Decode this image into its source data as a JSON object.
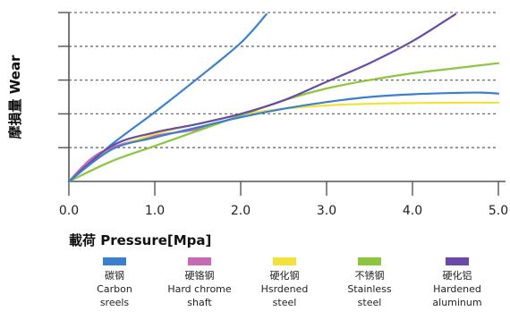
{
  "chart_data": {
    "type": "line",
    "xlabel": "載荷 Pressure[Mpa]",
    "ylabel": "摩損量 Wear",
    "xlim": [
      0,
      5
    ],
    "ylim": [
      0,
      5
    ],
    "x_ticks": [
      "0.0",
      "1.0",
      "2.0",
      "3.0",
      "4.0",
      "5.0"
    ],
    "grid": "horizontal-dashed",
    "legend_position": "bottom",
    "series": [
      {
        "name_zh": "碳钢",
        "name_en": [
          "Carbon",
          "sreels"
        ],
        "color": "#3a7fd0",
        "x": [
          0,
          0.5,
          1.0,
          1.5,
          2.0,
          2.3
        ],
        "y": [
          0,
          1.1,
          2.05,
          3.05,
          4.1,
          4.95
        ]
      },
      {
        "name_zh": "硬铬钢",
        "name_en": [
          "Hard chrome",
          "shaft"
        ],
        "color": "#c66ab3",
        "x": [
          0,
          0.25,
          0.5,
          1.0,
          1.5,
          2.0
        ],
        "y": [
          0,
          0.65,
          1.0,
          1.35,
          1.55,
          1.95
        ]
      },
      {
        "name_zh": "硬化钢",
        "name_en": [
          "Hsrdened",
          "steel"
        ],
        "color": "#f2e23a",
        "x": [
          0,
          0.25,
          0.5,
          1.0,
          1.5,
          2.0,
          2.5,
          3.0,
          3.5,
          4.0,
          4.5,
          5.0
        ],
        "y": [
          0,
          0.55,
          0.95,
          1.4,
          1.7,
          1.98,
          2.15,
          2.25,
          2.3,
          2.32,
          2.33,
          2.33
        ]
      },
      {
        "name_zh": "不锈钢",
        "name_en": [
          "Stainless",
          "steel"
        ],
        "color": "#8cc63e",
        "x": [
          0,
          0.5,
          1.0,
          1.5,
          2.0,
          2.5,
          3.0,
          3.5,
          4.0,
          4.5,
          5.0
        ],
        "y": [
          0,
          0.6,
          1.05,
          1.5,
          1.95,
          2.4,
          2.75,
          3.0,
          3.2,
          3.35,
          3.5
        ]
      },
      {
        "name_zh": "硬化铝",
        "name_en": [
          "Hardened",
          "aluminum"
        ],
        "color": "#6a4aa8",
        "x": [
          0,
          0.5,
          1.0,
          1.5,
          2.0,
          2.5,
          3.0,
          3.5,
          4.0,
          4.5
        ],
        "y": [
          0,
          1.05,
          1.45,
          1.7,
          2.0,
          2.4,
          2.95,
          3.5,
          4.15,
          4.95
        ]
      },
      {
        "name_zh": "",
        "name_en": [],
        "color": "#3a7fd0",
        "legend": false,
        "x": [
          0,
          0.5,
          1.0,
          1.5,
          2.0,
          2.5,
          3.0,
          3.5,
          4.0,
          4.5,
          4.8,
          5.0
        ],
        "y": [
          0,
          0.95,
          1.3,
          1.6,
          1.9,
          2.15,
          2.35,
          2.5,
          2.58,
          2.62,
          2.63,
          2.6
        ]
      }
    ]
  }
}
